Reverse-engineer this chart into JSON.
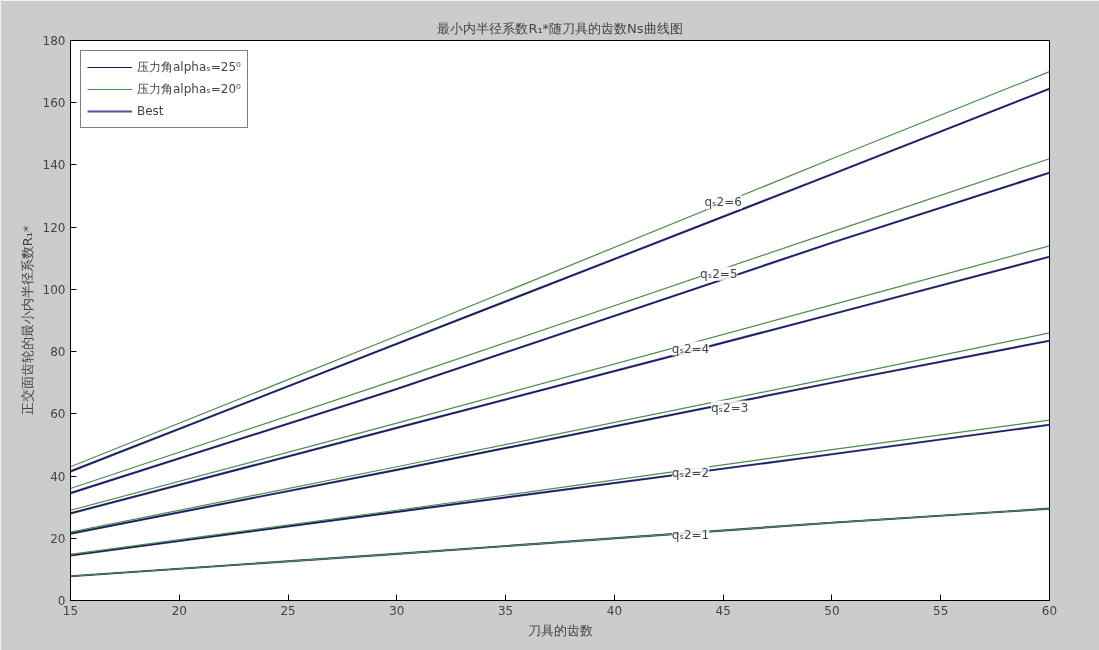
{
  "chart_data": {
    "type": "line",
    "title": "最小内半径系数R₁*随刀具的齿数Ns曲线图",
    "xlabel": "刀具的齿数",
    "ylabel": "正交面齿轮的最小内半径系数R₁*",
    "x": [
      15,
      30,
      50,
      60
    ],
    "xlim": [
      15,
      60
    ],
    "ylim": [
      0,
      180
    ],
    "xticks": [
      15,
      20,
      25,
      30,
      35,
      40,
      45,
      50,
      55,
      60
    ],
    "yticks": [
      0,
      20,
      40,
      60,
      80,
      100,
      120,
      140,
      160,
      180
    ],
    "grid": false,
    "legend": "top left",
    "line_style": "solid",
    "marker": "none",
    "series": [
      {
        "name": "压力角alphaₛ=25⁰",
        "color": "#1a1a4d",
        "values": [
          41.5,
          82.5,
          137,
          164.5
        ]
      },
      {
        "name": "压力角alphaₛ=20⁰",
        "color": "#4c8c4c",
        "values": [
          43,
          85,
          142,
          170
        ]
      },
      {
        "name": "Best",
        "color": "#5050a8",
        "values": [
          41.5,
          82.5,
          137,
          164.5
        ]
      },
      {
        "color": "#1a1a4d",
        "values": [
          34.5,
          68,
          115,
          137.5
        ]
      },
      {
        "color": "#4c8c4c",
        "values": [
          36,
          71,
          118.5,
          142
        ]
      },
      {
        "color": "#5050a8",
        "values": [
          34.5,
          68,
          115,
          137.5
        ]
      },
      {
        "color": "#1a1a4d",
        "values": [
          28,
          55.5,
          92,
          110.5
        ]
      },
      {
        "color": "#4c8c4c",
        "values": [
          29,
          57,
          95,
          114
        ]
      },
      {
        "color": "#5050a8",
        "values": [
          28,
          55.5,
          92,
          110.5
        ]
      },
      {
        "color": "#1a1a4d",
        "values": [
          21.5,
          42,
          70,
          83.5
        ]
      },
      {
        "color": "#4c8c4c",
        "values": [
          22,
          43,
          71.5,
          86
        ]
      },
      {
        "color": "#5050a8",
        "values": [
          21.5,
          42,
          70,
          83.5
        ]
      },
      {
        "color": "#1a1a4d",
        "values": [
          14.5,
          28.5,
          47,
          56.5
        ]
      },
      {
        "color": "#4c8c4c",
        "values": [
          14.8,
          29,
          48.5,
          58
        ]
      },
      {
        "color": "#5050a8",
        "values": [
          14.5,
          28.5,
          47,
          56.5
        ]
      },
      {
        "color": "#1a1a4d",
        "values": [
          7.8,
          15,
          25,
          29.5
        ]
      },
      {
        "color": "#4c8c4c",
        "values": [
          7.8,
          15,
          25,
          29.5
        ]
      },
      {
        "color": "#5050a8",
        "values": [
          7.8,
          15,
          25,
          29.5
        ]
      }
    ],
    "annotations": [
      {
        "text": "qₛ2=6",
        "x": 45,
        "y": 128
      },
      {
        "text": "qₛ2=5",
        "x": 44.8,
        "y": 105
      },
      {
        "text": "qₛ2=4",
        "x": 43.5,
        "y": 81
      },
      {
        "text": "qₛ2=3",
        "x": 45.3,
        "y": 62
      },
      {
        "text": "qₛ2=2",
        "x": 43.5,
        "y": 41
      },
      {
        "text": "qₛ2=1",
        "x": 43.5,
        "y": 21
      }
    ]
  }
}
